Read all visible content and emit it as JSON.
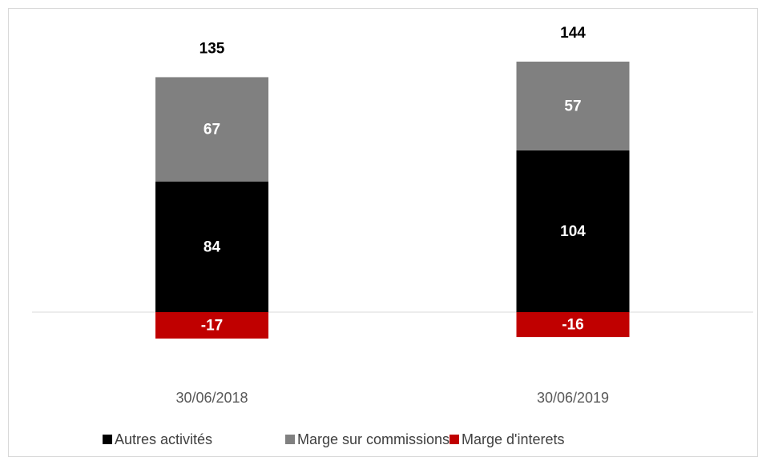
{
  "chart_data": {
    "type": "stacked_bar",
    "categories": [
      "30/06/2018",
      "30/06/2019"
    ],
    "series": [
      {
        "name": "Autres activités",
        "color": "#000000",
        "values": [
          84,
          104
        ]
      },
      {
        "name": "Marge sur commissions",
        "color": "#808080",
        "values": [
          67,
          57
        ]
      },
      {
        "name": "Marge d'interets",
        "color": "#c00000",
        "values": [
          -17,
          -16
        ]
      }
    ],
    "totals": [
      135,
      144
    ]
  }
}
